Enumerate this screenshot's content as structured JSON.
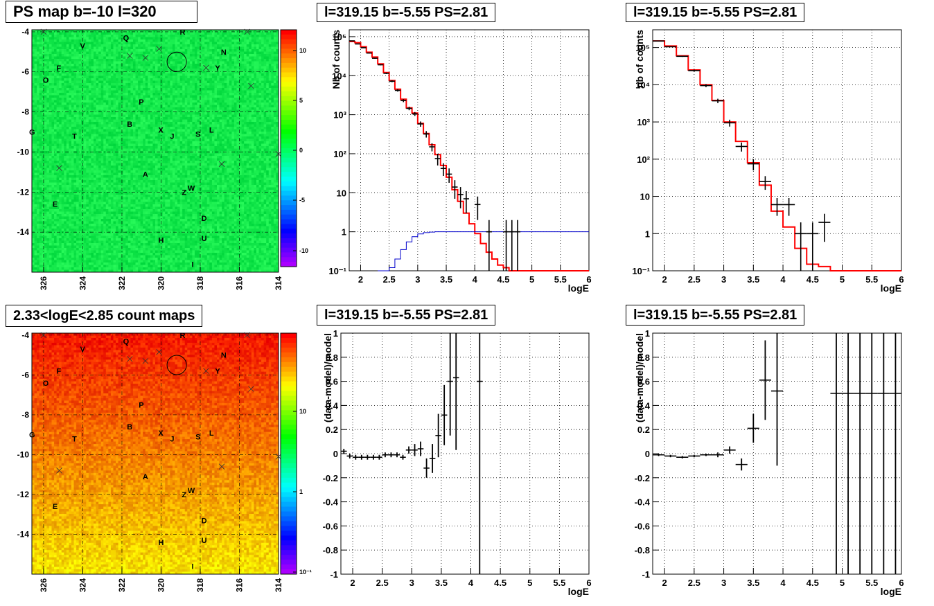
{
  "colors": {
    "model_line": "#ff0000",
    "low_line": "#0000cc",
    "data": "#000000",
    "grid": "#000000"
  },
  "titles": {
    "map_top": "PS map b=-10 l=320",
    "map_bottom": "2.33<logE<2.85 count maps",
    "spectrum_1": "l=319.15 b=-5.55 PS=2.81",
    "spectrum_2": "l=319.15 b=-5.55 PS=2.81",
    "residual_1": "l=319.15 b=-5.55 PS=2.81",
    "residual_2": "l=319.15 b=-5.55 PS=2.81"
  },
  "maps": {
    "xticks": [
      "326",
      "324",
      "322",
      "320",
      "318",
      "316",
      "314"
    ],
    "yticks": [
      "-4",
      "-6",
      "-8",
      "-10",
      "-12",
      "-14"
    ],
    "cbar_top_ticks": [
      "10",
      "5",
      "0",
      "-5",
      "-10"
    ],
    "cbar_bottom_ticks": [
      "10",
      "1",
      "10⁻¹"
    ],
    "letters": [
      {
        "t": "R",
        "l": 318.9,
        "b": -4.0
      },
      {
        "t": "Q",
        "l": 321.8,
        "b": -4.3
      },
      {
        "t": "V",
        "l": 324.0,
        "b": -4.7
      },
      {
        "t": "N",
        "l": 316.8,
        "b": -5.0
      },
      {
        "t": "F",
        "l": 325.2,
        "b": -5.8
      },
      {
        "t": "Y",
        "l": 317.1,
        "b": -5.8
      },
      {
        "t": "O",
        "l": 325.9,
        "b": -6.4
      },
      {
        "t": "P",
        "l": 321.0,
        "b": -7.5
      },
      {
        "t": "B",
        "l": 321.6,
        "b": -8.6
      },
      {
        "t": "X",
        "l": 320.0,
        "b": -8.9
      },
      {
        "t": "J",
        "l": 319.4,
        "b": -9.2
      },
      {
        "t": "S",
        "l": 318.1,
        "b": -9.1
      },
      {
        "t": "L",
        "l": 317.4,
        "b": -8.9
      },
      {
        "t": "G",
        "l": 326.6,
        "b": -9.0
      },
      {
        "t": "T",
        "l": 324.4,
        "b": -9.2
      },
      {
        "t": "A",
        "l": 320.8,
        "b": -11.1
      },
      {
        "t": "W",
        "l": 318.5,
        "b": -11.8
      },
      {
        "t": "Z",
        "l": 318.8,
        "b": -12.0
      },
      {
        "t": "E",
        "l": 325.4,
        "b": -12.6
      },
      {
        "t": "D",
        "l": 317.8,
        "b": -13.3
      },
      {
        "t": "H",
        "l": 320.0,
        "b": -14.4
      },
      {
        "t": "U",
        "l": 317.8,
        "b": -14.3
      },
      {
        "t": "I",
        "l": 318.3,
        "b": -15.6
      }
    ],
    "crosses": [
      {
        "l": 326.0,
        "b": -4.0
      },
      {
        "l": 315.6,
        "b": -4.0
      },
      {
        "l": 321.6,
        "b": -5.2
      },
      {
        "l": 320.8,
        "b": -5.3
      },
      {
        "l": 320.1,
        "b": -4.85
      },
      {
        "l": 317.7,
        "b": -5.8
      },
      {
        "l": 315.4,
        "b": -6.7
      },
      {
        "l": 325.2,
        "b": -10.8
      },
      {
        "l": 316.9,
        "b": -10.6
      },
      {
        "l": 314.0,
        "b": -10.1
      }
    ],
    "circle": {
      "l": 319.2,
      "b": -5.5
    }
  },
  "spectra": [
    {
      "xlabel": "logE",
      "ylabel": "Nb of counts",
      "xticks": [
        "2",
        "2.5",
        "3",
        "3.5",
        "4",
        "4.5",
        "5",
        "5.5",
        "6"
      ],
      "yticks": [
        "10⁻¹",
        "1",
        "10",
        "10²",
        "10³",
        "10⁴",
        "10⁵"
      ],
      "xlim": [
        1.8,
        6.0
      ],
      "ylim": [
        0.1,
        150000
      ],
      "model_step_width": 0.1,
      "model": [
        [
          1.8,
          75000
        ],
        [
          1.9,
          70000
        ],
        [
          2.0,
          55000
        ],
        [
          2.1,
          40000
        ],
        [
          2.2,
          30000
        ],
        [
          2.3,
          20000
        ],
        [
          2.4,
          12000
        ],
        [
          2.5,
          7500
        ],
        [
          2.6,
          4500
        ],
        [
          2.7,
          2500
        ],
        [
          2.8,
          1500
        ],
        [
          2.9,
          1100
        ],
        [
          3.0,
          600
        ],
        [
          3.1,
          330
        ],
        [
          3.2,
          170
        ],
        [
          3.3,
          95
        ],
        [
          3.4,
          50
        ],
        [
          3.5,
          25
        ],
        [
          3.6,
          12
        ],
        [
          3.7,
          6
        ],
        [
          3.8,
          3
        ],
        [
          3.9,
          1.6
        ],
        [
          4.0,
          0.9
        ],
        [
          4.1,
          0.5
        ],
        [
          4.2,
          0.3
        ],
        [
          4.3,
          0.2
        ],
        [
          4.4,
          0.14
        ],
        [
          4.5,
          0.12
        ],
        [
          4.6,
          0.1
        ],
        [
          4.7,
          0.1
        ],
        [
          4.8,
          0.1
        ],
        [
          4.9,
          0.1
        ],
        [
          5.0,
          0.1
        ],
        [
          5.1,
          0.1
        ],
        [
          5.2,
          0.1
        ],
        [
          5.3,
          0.1
        ],
        [
          5.4,
          0.1
        ],
        [
          5.5,
          0.1
        ],
        [
          5.6,
          0.1
        ],
        [
          5.7,
          0.1
        ],
        [
          5.8,
          0.1
        ],
        [
          5.9,
          0.1
        ]
      ],
      "low": [
        [
          2.3,
          0.1
        ],
        [
          2.4,
          0.1
        ],
        [
          2.5,
          0.12
        ],
        [
          2.6,
          0.2
        ],
        [
          2.7,
          0.35
        ],
        [
          2.8,
          0.55
        ],
        [
          2.9,
          0.75
        ],
        [
          3.0,
          0.88
        ],
        [
          3.1,
          0.95
        ],
        [
          3.2,
          0.98
        ],
        [
          3.3,
          1
        ],
        [
          3.4,
          1
        ],
        [
          3.5,
          1
        ],
        [
          3.6,
          1
        ],
        [
          3.7,
          1
        ],
        [
          3.8,
          1
        ],
        [
          3.9,
          1
        ],
        [
          4.0,
          1
        ],
        [
          4.1,
          1
        ],
        [
          4.2,
          1
        ],
        [
          4.3,
          1
        ],
        [
          4.4,
          1
        ],
        [
          4.5,
          1
        ],
        [
          4.6,
          1
        ],
        [
          4.7,
          1
        ],
        [
          4.8,
          1
        ],
        [
          4.9,
          1
        ],
        [
          5.0,
          1
        ],
        [
          5.1,
          1
        ],
        [
          5.2,
          1
        ],
        [
          5.3,
          1
        ],
        [
          5.4,
          1
        ],
        [
          5.5,
          1
        ],
        [
          5.6,
          1
        ],
        [
          5.7,
          1
        ],
        [
          5.8,
          1
        ],
        [
          5.9,
          1
        ]
      ],
      "points": [
        [
          1.85,
          78000,
          0.05,
          1500
        ],
        [
          1.95,
          65000,
          0.05,
          1300
        ],
        [
          2.05,
          52000,
          0.05,
          1100
        ],
        [
          2.15,
          38000,
          0.05,
          900
        ],
        [
          2.25,
          28000,
          0.05,
          800
        ],
        [
          2.35,
          19000,
          0.05,
          600
        ],
        [
          2.45,
          11500,
          0.05,
          500
        ],
        [
          2.55,
          7200,
          0.05,
          400
        ],
        [
          2.65,
          4200,
          0.05,
          300
        ],
        [
          2.75,
          2300,
          0.05,
          200
        ],
        [
          2.85,
          1450,
          0.05,
          150
        ],
        [
          2.95,
          1050,
          0.05,
          120
        ],
        [
          3.05,
          580,
          0.05,
          90
        ],
        [
          3.15,
          320,
          0.05,
          60
        ],
        [
          3.25,
          150,
          0.05,
          35
        ],
        [
          3.35,
          75,
          0.05,
          25
        ],
        [
          3.45,
          42,
          0.05,
          15
        ],
        [
          3.55,
          30,
          0.05,
          12
        ],
        [
          3.65,
          14,
          0.05,
          7
        ],
        [
          3.75,
          9,
          0.05,
          5
        ],
        [
          3.85,
          7,
          0.05,
          4
        ],
        [
          4.05,
          5,
          0.05,
          3
        ],
        [
          4.25,
          1,
          0.05,
          1
        ],
        [
          4.55,
          1,
          0.05,
          1
        ],
        [
          4.65,
          1,
          0.05,
          1
        ],
        [
          4.75,
          1,
          0.05,
          1
        ]
      ]
    },
    {
      "xlabel": "logE",
      "ylabel": "nb of counts",
      "xticks": [
        "2",
        "2.5",
        "3",
        "3.5",
        "4",
        "4.5",
        "5",
        "5.5",
        "6"
      ],
      "yticks": [
        "10⁻¹",
        "1",
        "10",
        "10²",
        "10³",
        "10⁴",
        "10⁵"
      ],
      "xlim": [
        1.8,
        6.0
      ],
      "ylim": [
        0.1,
        300000
      ],
      "model_step_width": 0.2,
      "model": [
        [
          1.8,
          150000
        ],
        [
          2.0,
          110000
        ],
        [
          2.2,
          60000
        ],
        [
          2.4,
          25000
        ],
        [
          2.6,
          10000
        ],
        [
          2.8,
          3800
        ],
        [
          3.0,
          1000
        ],
        [
          3.2,
          300
        ],
        [
          3.4,
          80
        ],
        [
          3.6,
          20
        ],
        [
          3.8,
          4
        ],
        [
          4.0,
          1.5
        ],
        [
          4.2,
          0.4
        ],
        [
          4.4,
          0.15
        ],
        [
          4.6,
          0.13
        ],
        [
          4.8,
          0.1
        ],
        [
          5.0,
          0.1
        ],
        [
          5.2,
          0.1
        ],
        [
          5.4,
          0.1
        ],
        [
          5.6,
          0.1
        ],
        [
          5.8,
          0.1
        ]
      ],
      "low": [],
      "points": [
        [
          1.9,
          150000,
          0.1,
          3000
        ],
        [
          2.1,
          105000,
          0.1,
          2500
        ],
        [
          2.3,
          58000,
          0.1,
          2000
        ],
        [
          2.5,
          24000,
          0.1,
          1500
        ],
        [
          2.7,
          9500,
          0.1,
          900
        ],
        [
          2.9,
          3700,
          0.1,
          500
        ],
        [
          3.1,
          950,
          0.1,
          200
        ],
        [
          3.3,
          220,
          0.1,
          60
        ],
        [
          3.5,
          75,
          0.1,
          25
        ],
        [
          3.7,
          25,
          0.1,
          10
        ],
        [
          3.9,
          6,
          0.1,
          3
        ],
        [
          4.1,
          6,
          0.1,
          3
        ],
        [
          4.3,
          1,
          0.1,
          1
        ],
        [
          4.5,
          1,
          0.1,
          1
        ],
        [
          4.7,
          2,
          0.1,
          1.4
        ]
      ]
    }
  ],
  "residuals": [
    {
      "xlabel": "logE",
      "ylabel": "(data-model)/model",
      "xticks": [
        "2",
        "2.5",
        "3",
        "3.5",
        "4",
        "4.5",
        "5",
        "5.5",
        "6"
      ],
      "yticks": [
        "-1",
        "-0.8",
        "-0.6",
        "-0.4",
        "-0.2",
        "0",
        "0.2",
        "0.4",
        "0.6",
        "0.8",
        "1"
      ],
      "xlim": [
        1.8,
        6.0
      ],
      "ylim": [
        -1,
        1
      ],
      "points": [
        [
          1.85,
          0.02,
          0.05,
          0.02
        ],
        [
          1.95,
          -0.02,
          0.05,
          0.02
        ],
        [
          2.05,
          -0.03,
          0.05,
          0.02
        ],
        [
          2.15,
          -0.03,
          0.05,
          0.02
        ],
        [
          2.25,
          -0.03,
          0.05,
          0.02
        ],
        [
          2.35,
          -0.03,
          0.05,
          0.02
        ],
        [
          2.45,
          -0.03,
          0.05,
          0.02
        ],
        [
          2.55,
          -0.01,
          0.05,
          0.02
        ],
        [
          2.65,
          -0.01,
          0.05,
          0.02
        ],
        [
          2.75,
          -0.01,
          0.05,
          0.02
        ],
        [
          2.85,
          -0.03,
          0.05,
          0.02
        ],
        [
          2.95,
          0.03,
          0.05,
          0.03
        ],
        [
          3.05,
          0.03,
          0.05,
          0.05
        ],
        [
          3.15,
          0.04,
          0.05,
          0.06
        ],
        [
          3.25,
          -0.12,
          0.05,
          0.08
        ],
        [
          3.35,
          -0.04,
          0.05,
          0.12
        ],
        [
          3.45,
          0.15,
          0.05,
          0.18
        ],
        [
          3.55,
          0.32,
          0.05,
          0.25
        ],
        [
          3.65,
          0.6,
          0.05,
          0.45
        ],
        [
          3.75,
          0.63,
          0.05,
          0.6
        ],
        [
          4.15,
          0.6,
          0.05,
          2
        ]
      ]
    },
    {
      "xlabel": "logE",
      "ylabel": "(data-model)/model",
      "xticks": [
        "2",
        "2.5",
        "3",
        "3.5",
        "4",
        "4.5",
        "5",
        "5.5",
        "6"
      ],
      "yticks": [
        "-1",
        "-0.8",
        "-0.6",
        "-0.4",
        "-0.2",
        "0",
        "0.2",
        "0.4",
        "0.6",
        "0.8",
        "1"
      ],
      "xlim": [
        1.8,
        6.0
      ],
      "ylim": [
        -1,
        1
      ],
      "points": [
        [
          1.9,
          -0.01,
          0.1,
          0.01
        ],
        [
          2.1,
          -0.02,
          0.1,
          0.01
        ],
        [
          2.3,
          -0.03,
          0.1,
          0.01
        ],
        [
          2.5,
          -0.02,
          0.1,
          0.01
        ],
        [
          2.7,
          -0.01,
          0.1,
          0.01
        ],
        [
          2.9,
          -0.01,
          0.1,
          0.02
        ],
        [
          3.1,
          0.03,
          0.1,
          0.03
        ],
        [
          3.3,
          -0.09,
          0.1,
          0.05
        ],
        [
          3.5,
          0.21,
          0.1,
          0.12
        ],
        [
          3.7,
          0.61,
          0.1,
          0.33
        ],
        [
          3.9,
          0.52,
          0.1,
          0.62
        ],
        [
          4.9,
          0.5,
          0.1,
          2
        ],
        [
          5.1,
          0.5,
          0.1,
          2
        ],
        [
          5.3,
          0.5,
          0.1,
          2
        ],
        [
          5.5,
          0.5,
          0.1,
          2
        ],
        [
          5.7,
          0.5,
          0.1,
          2
        ],
        [
          5.9,
          0.5,
          0.1,
          2
        ]
      ]
    }
  ]
}
